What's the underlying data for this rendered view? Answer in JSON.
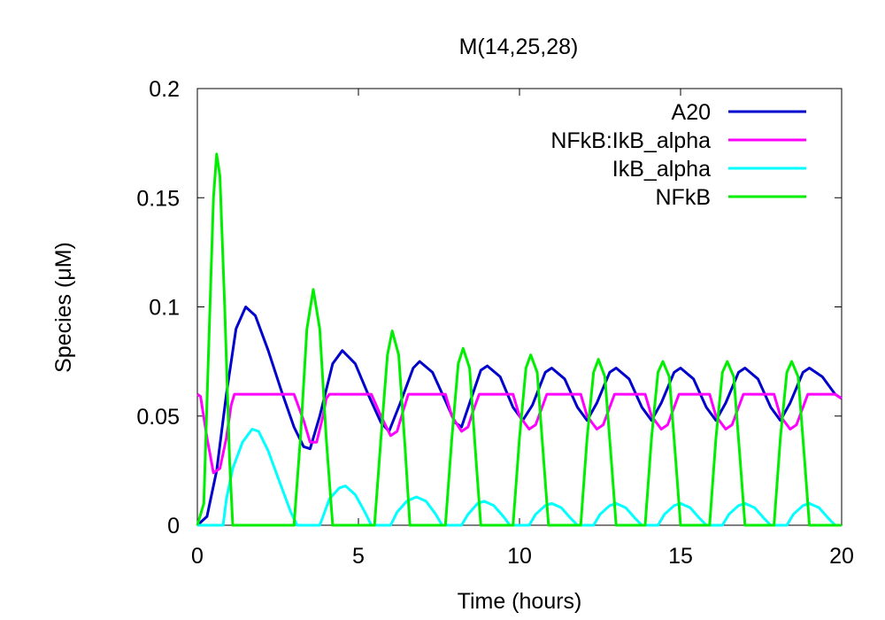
{
  "chart_data": {
    "type": "line",
    "title": "M(14,25,28)",
    "xlabel": "Time (hours)",
    "ylabel": "Species (μM)",
    "xlim": [
      0,
      20
    ],
    "ylim": [
      0,
      0.2
    ],
    "xticks": [
      0,
      5,
      10,
      15,
      20
    ],
    "yticks": [
      0,
      0.05,
      0.1,
      0.15,
      0.2
    ],
    "x_tick_labels": [
      "0",
      "5",
      "10",
      "15",
      "20"
    ],
    "y_tick_labels": [
      "0",
      "0.05",
      "0.1",
      "0.15",
      "0.2"
    ],
    "grid": false,
    "legend_position": "top-right",
    "series": [
      {
        "name": "A20",
        "color": "#0000cc",
        "points": [
          [
            0,
            0
          ],
          [
            0.3,
            0.004
          ],
          [
            0.6,
            0.025
          ],
          [
            0.9,
            0.06
          ],
          [
            1.2,
            0.09
          ],
          [
            1.5,
            0.1
          ],
          [
            1.8,
            0.096
          ],
          [
            2.2,
            0.08
          ],
          [
            2.6,
            0.062
          ],
          [
            3.0,
            0.045
          ],
          [
            3.3,
            0.036
          ],
          [
            3.5,
            0.035
          ],
          [
            3.8,
            0.05
          ],
          [
            4.2,
            0.074
          ],
          [
            4.5,
            0.08
          ],
          [
            4.9,
            0.074
          ],
          [
            5.3,
            0.06
          ],
          [
            5.7,
            0.047
          ],
          [
            5.95,
            0.043
          ],
          [
            6.3,
            0.056
          ],
          [
            6.7,
            0.072
          ],
          [
            6.9,
            0.075
          ],
          [
            7.3,
            0.07
          ],
          [
            7.7,
            0.057
          ],
          [
            8.0,
            0.047
          ],
          [
            8.2,
            0.045
          ],
          [
            8.5,
            0.058
          ],
          [
            8.8,
            0.071
          ],
          [
            9.0,
            0.073
          ],
          [
            9.4,
            0.068
          ],
          [
            9.8,
            0.054
          ],
          [
            10.1,
            0.048
          ],
          [
            10.4,
            0.055
          ],
          [
            10.8,
            0.07
          ],
          [
            11.0,
            0.072
          ],
          [
            11.4,
            0.067
          ],
          [
            11.8,
            0.054
          ],
          [
            12.1,
            0.048
          ],
          [
            12.4,
            0.056
          ],
          [
            12.8,
            0.07
          ],
          [
            13.0,
            0.072
          ],
          [
            13.4,
            0.067
          ],
          [
            13.8,
            0.054
          ],
          [
            14.1,
            0.048
          ],
          [
            14.4,
            0.056
          ],
          [
            14.8,
            0.07
          ],
          [
            15.0,
            0.072
          ],
          [
            15.4,
            0.067
          ],
          [
            15.8,
            0.054
          ],
          [
            16.1,
            0.048
          ],
          [
            16.4,
            0.056
          ],
          [
            16.8,
            0.07
          ],
          [
            17.0,
            0.072
          ],
          [
            17.4,
            0.067
          ],
          [
            17.8,
            0.054
          ],
          [
            18.1,
            0.048
          ],
          [
            18.4,
            0.056
          ],
          [
            18.8,
            0.07
          ],
          [
            19.0,
            0.072
          ],
          [
            19.4,
            0.068
          ],
          [
            19.8,
            0.06
          ],
          [
            20.0,
            0.058
          ]
        ]
      },
      {
        "name": "NFkB:IkB_alpha",
        "color": "#ff00ff",
        "points": [
          [
            0,
            0.06
          ],
          [
            0.1,
            0.059
          ],
          [
            0.3,
            0.04
          ],
          [
            0.5,
            0.024
          ],
          [
            0.7,
            0.026
          ],
          [
            0.9,
            0.04
          ],
          [
            1.05,
            0.055
          ],
          [
            1.15,
            0.06
          ],
          [
            3.0,
            0.06
          ],
          [
            3.3,
            0.048
          ],
          [
            3.5,
            0.038
          ],
          [
            3.7,
            0.038
          ],
          [
            3.9,
            0.05
          ],
          [
            4.0,
            0.058
          ],
          [
            4.1,
            0.06
          ],
          [
            5.4,
            0.06
          ],
          [
            5.7,
            0.05
          ],
          [
            6.0,
            0.041
          ],
          [
            6.2,
            0.043
          ],
          [
            6.4,
            0.053
          ],
          [
            6.55,
            0.06
          ],
          [
            7.7,
            0.06
          ],
          [
            7.9,
            0.05
          ],
          [
            8.2,
            0.043
          ],
          [
            8.4,
            0.045
          ],
          [
            8.6,
            0.054
          ],
          [
            8.75,
            0.06
          ],
          [
            9.8,
            0.06
          ],
          [
            10.0,
            0.05
          ],
          [
            10.3,
            0.044
          ],
          [
            10.5,
            0.046
          ],
          [
            10.7,
            0.054
          ],
          [
            10.85,
            0.06
          ],
          [
            11.9,
            0.06
          ],
          [
            12.1,
            0.05
          ],
          [
            12.4,
            0.044
          ],
          [
            12.6,
            0.046
          ],
          [
            12.8,
            0.054
          ],
          [
            12.95,
            0.06
          ],
          [
            13.9,
            0.06
          ],
          [
            14.1,
            0.05
          ],
          [
            14.4,
            0.044
          ],
          [
            14.6,
            0.046
          ],
          [
            14.8,
            0.054
          ],
          [
            14.95,
            0.06
          ],
          [
            15.9,
            0.06
          ],
          [
            16.1,
            0.05
          ],
          [
            16.4,
            0.044
          ],
          [
            16.6,
            0.046
          ],
          [
            16.8,
            0.054
          ],
          [
            16.95,
            0.06
          ],
          [
            17.9,
            0.06
          ],
          [
            18.1,
            0.05
          ],
          [
            18.4,
            0.044
          ],
          [
            18.6,
            0.046
          ],
          [
            18.8,
            0.054
          ],
          [
            18.95,
            0.06
          ],
          [
            19.8,
            0.06
          ],
          [
            20.0,
            0.058
          ]
        ]
      },
      {
        "name": "IkB_alpha",
        "color": "#00ffff",
        "points": [
          [
            0,
            0
          ],
          [
            0.8,
            0
          ],
          [
            0.9,
            0.012
          ],
          [
            1.1,
            0.026
          ],
          [
            1.4,
            0.038
          ],
          [
            1.7,
            0.044
          ],
          [
            1.9,
            0.043
          ],
          [
            2.2,
            0.034
          ],
          [
            2.6,
            0.018
          ],
          [
            2.9,
            0.006
          ],
          [
            3.1,
            0
          ],
          [
            3.8,
            0
          ],
          [
            3.9,
            0.004
          ],
          [
            4.1,
            0.012
          ],
          [
            4.4,
            0.017
          ],
          [
            4.6,
            0.018
          ],
          [
            4.9,
            0.014
          ],
          [
            5.2,
            0.006
          ],
          [
            5.4,
            0
          ],
          [
            6.0,
            0
          ],
          [
            6.2,
            0.006
          ],
          [
            6.5,
            0.011
          ],
          [
            6.8,
            0.013
          ],
          [
            7.1,
            0.011
          ],
          [
            7.4,
            0.005
          ],
          [
            7.6,
            0
          ],
          [
            8.2,
            0
          ],
          [
            8.4,
            0.005
          ],
          [
            8.7,
            0.01
          ],
          [
            8.9,
            0.011
          ],
          [
            9.2,
            0.009
          ],
          [
            9.5,
            0.004
          ],
          [
            9.7,
            0
          ],
          [
            10.3,
            0
          ],
          [
            10.5,
            0.005
          ],
          [
            10.8,
            0.009
          ],
          [
            11.0,
            0.01
          ],
          [
            11.3,
            0.008
          ],
          [
            11.6,
            0.003
          ],
          [
            11.8,
            0
          ],
          [
            12.3,
            0
          ],
          [
            12.5,
            0.005
          ],
          [
            12.8,
            0.009
          ],
          [
            13.0,
            0.01
          ],
          [
            13.3,
            0.008
          ],
          [
            13.6,
            0.003
          ],
          [
            13.8,
            0
          ],
          [
            14.3,
            0
          ],
          [
            14.5,
            0.005
          ],
          [
            14.8,
            0.009
          ],
          [
            15.0,
            0.01
          ],
          [
            15.3,
            0.008
          ],
          [
            15.6,
            0.003
          ],
          [
            15.8,
            0
          ],
          [
            16.3,
            0
          ],
          [
            16.5,
            0.005
          ],
          [
            16.8,
            0.009
          ],
          [
            17.0,
            0.01
          ],
          [
            17.3,
            0.008
          ],
          [
            17.6,
            0.003
          ],
          [
            17.8,
            0
          ],
          [
            18.3,
            0
          ],
          [
            18.5,
            0.005
          ],
          [
            18.8,
            0.009
          ],
          [
            19.0,
            0.01
          ],
          [
            19.3,
            0.008
          ],
          [
            19.6,
            0.003
          ],
          [
            19.8,
            0
          ],
          [
            20.0,
            0
          ]
        ]
      },
      {
        "name": "NFkB",
        "color": "#00ee00",
        "points": [
          [
            0,
            0
          ],
          [
            0.2,
            0.01
          ],
          [
            0.35,
            0.08
          ],
          [
            0.5,
            0.15
          ],
          [
            0.6,
            0.17
          ],
          [
            0.7,
            0.16
          ],
          [
            0.85,
            0.1
          ],
          [
            1.0,
            0.03
          ],
          [
            1.1,
            0
          ],
          [
            3.0,
            0
          ],
          [
            3.2,
            0.04
          ],
          [
            3.4,
            0.09
          ],
          [
            3.6,
            0.108
          ],
          [
            3.8,
            0.09
          ],
          [
            4.0,
            0.04
          ],
          [
            4.2,
            0
          ],
          [
            5.5,
            0
          ],
          [
            5.7,
            0.04
          ],
          [
            5.9,
            0.078
          ],
          [
            6.05,
            0.089
          ],
          [
            6.25,
            0.078
          ],
          [
            6.45,
            0.035
          ],
          [
            6.6,
            0
          ],
          [
            7.7,
            0
          ],
          [
            7.9,
            0.04
          ],
          [
            8.1,
            0.074
          ],
          [
            8.25,
            0.081
          ],
          [
            8.45,
            0.072
          ],
          [
            8.65,
            0.03
          ],
          [
            8.8,
            0
          ],
          [
            9.8,
            0
          ],
          [
            10.0,
            0.04
          ],
          [
            10.2,
            0.072
          ],
          [
            10.35,
            0.078
          ],
          [
            10.55,
            0.07
          ],
          [
            10.75,
            0.03
          ],
          [
            10.9,
            0
          ],
          [
            11.9,
            0
          ],
          [
            12.1,
            0.04
          ],
          [
            12.3,
            0.07
          ],
          [
            12.45,
            0.076
          ],
          [
            12.65,
            0.068
          ],
          [
            12.85,
            0.03
          ],
          [
            13.0,
            0
          ],
          [
            13.9,
            0
          ],
          [
            14.1,
            0.04
          ],
          [
            14.3,
            0.07
          ],
          [
            14.45,
            0.075
          ],
          [
            14.65,
            0.068
          ],
          [
            14.85,
            0.03
          ],
          [
            15.0,
            0
          ],
          [
            15.9,
            0
          ],
          [
            16.1,
            0.04
          ],
          [
            16.3,
            0.07
          ],
          [
            16.45,
            0.075
          ],
          [
            16.65,
            0.068
          ],
          [
            16.85,
            0.03
          ],
          [
            17.0,
            0
          ],
          [
            17.9,
            0
          ],
          [
            18.1,
            0.04
          ],
          [
            18.3,
            0.07
          ],
          [
            18.45,
            0.075
          ],
          [
            18.65,
            0.068
          ],
          [
            18.85,
            0.03
          ],
          [
            19.0,
            0
          ],
          [
            20.0,
            0
          ]
        ]
      }
    ]
  }
}
